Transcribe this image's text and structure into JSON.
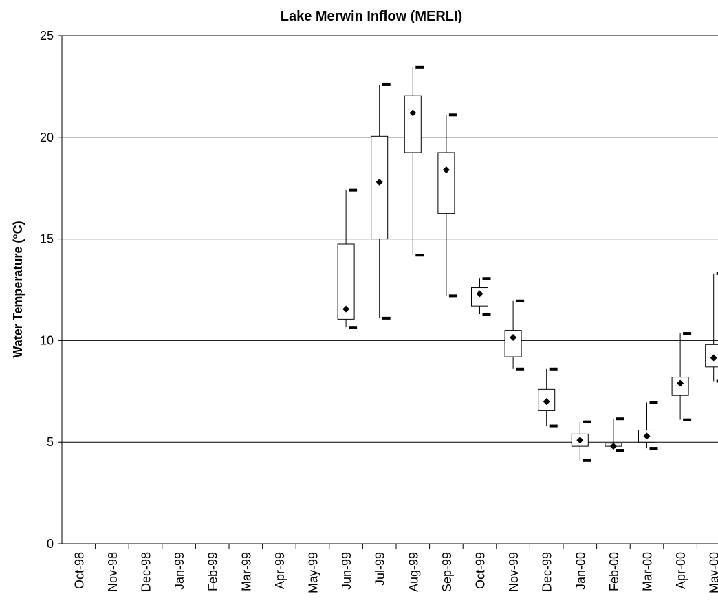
{
  "chart_data": {
    "type": "box",
    "title": "Lake Merwin Inflow (MERLI)",
    "y_label": "Water Temperature (°C)",
    "categories": [
      "Oct-98",
      "Nov-98",
      "Dec-98",
      "Jan-99",
      "Feb-99",
      "Mar-99",
      "Apr-99",
      "May-99",
      "Jun-99",
      "Jul-99",
      "Aug-99",
      "Sep-99",
      "Oct-99",
      "Nov-99",
      "Dec-99",
      "Jan-00",
      "Feb-00",
      "Mar-00",
      "Apr-00",
      "May-00"
    ],
    "min": [
      null,
      null,
      null,
      null,
      null,
      null,
      null,
      null,
      10.65,
      11.1,
      14.2,
      12.2,
      11.3,
      8.6,
      5.8,
      4.1,
      4.6,
      4.7,
      6.1,
      8.0
    ],
    "q1": [
      null,
      null,
      null,
      null,
      null,
      null,
      null,
      null,
      11.05,
      15.0,
      19.25,
      16.25,
      11.7,
      9.2,
      6.55,
      4.8,
      4.8,
      5.0,
      7.3,
      8.7
    ],
    "mean": [
      null,
      null,
      null,
      null,
      null,
      null,
      null,
      null,
      11.55,
      17.8,
      21.2,
      18.4,
      12.3,
      10.15,
      7.0,
      5.1,
      4.8,
      5.3,
      7.9,
      9.15
    ],
    "q3": [
      null,
      null,
      null,
      null,
      null,
      null,
      null,
      null,
      14.75,
      20.05,
      22.05,
      19.25,
      12.6,
      10.5,
      7.6,
      5.4,
      4.95,
      5.6,
      8.2,
      9.8
    ],
    "max": [
      null,
      null,
      null,
      null,
      null,
      null,
      null,
      null,
      17.4,
      22.6,
      23.45,
      21.1,
      13.05,
      11.95,
      8.6,
      6.0,
      6.15,
      6.95,
      10.35,
      13.3
    ],
    "ylim": [
      0,
      25
    ],
    "yticks": [
      0,
      5,
      10,
      15,
      20,
      25
    ],
    "grid": true
  }
}
